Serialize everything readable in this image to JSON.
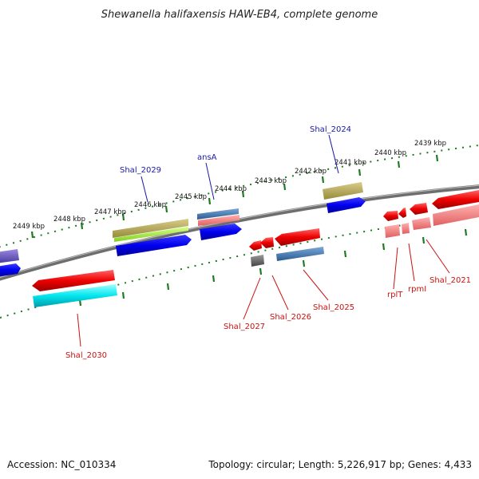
{
  "title": "Shewanella halifaxensis HAW-EB4, complete genome",
  "footer": {
    "accession": "Accession: NC_010334",
    "topology": "Topology: circular; Length: 5,226,917 bp; Genes: 4,433"
  },
  "colors": {
    "backbone": "#8a8a8a",
    "ruler": "#1e7a1e",
    "label_top": "#1a1aa8",
    "label_bottom": "#cc1111"
  },
  "ruler_labels": [
    "2449 kbp",
    "2448 kbp",
    "2447 kbp",
    "2446 kbp",
    "2445 kbp",
    "2444 kbp",
    "2443 kbp",
    "2442 kbp",
    "2441 kbp",
    "2440 kbp",
    "2439 kbp"
  ],
  "gene_labels_top": [
    "Shal_2029",
    "ansA",
    "Shal_2024"
  ],
  "gene_labels_bottom": [
    "Shal_2030",
    "Shal_2027",
    "Shal_2026",
    "Shal_2025",
    "rplT",
    "rpmI",
    "Shal_2021"
  ]
}
